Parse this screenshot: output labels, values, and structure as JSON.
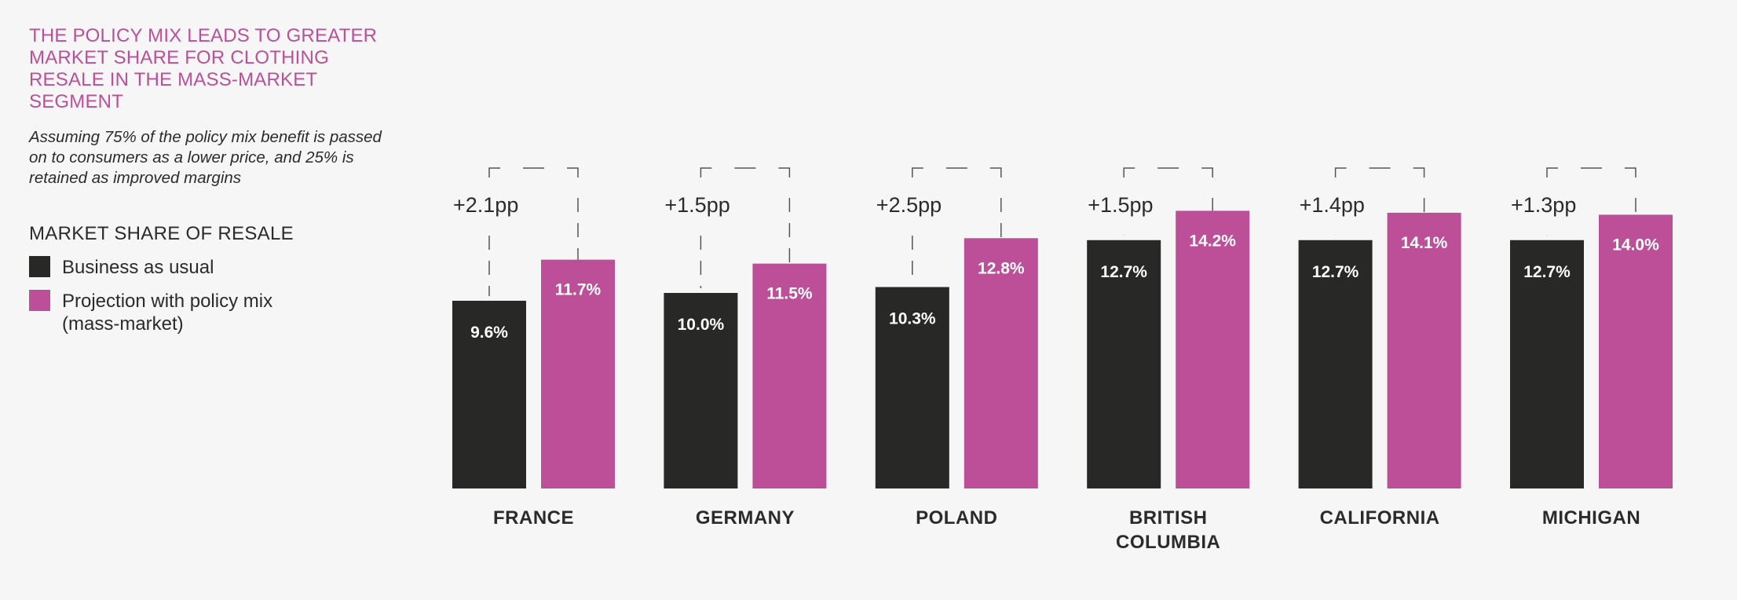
{
  "title": "THE POLICY MIX LEADS TO GREATER MARKET SHARE FOR CLOTHING RESALE IN THE MASS-MARKET SEGMENT",
  "subtitle": "Assuming 75% of the policy mix benefit is passed on to consumers as a lower price, and 25% is retained as improved margins",
  "legend": {
    "title": "MARKET SHARE OF RESALE",
    "items": [
      {
        "label": "Business as usual",
        "color": "#282826"
      },
      {
        "label": "Projection with policy mix\n(mass-market)",
        "color": "#bc4f98"
      }
    ]
  },
  "chart_data": {
    "type": "bar",
    "categories": [
      [
        "FRANCE"
      ],
      [
        "GERMANY"
      ],
      [
        "POLAND"
      ],
      [
        "BRITISH",
        "COLUMBIA"
      ],
      [
        "CALIFORNIA"
      ],
      [
        "MICHIGAN"
      ]
    ],
    "series": [
      {
        "name": "Business as usual",
        "color": "#282826",
        "values": [
          9.6,
          10.0,
          10.3,
          12.7,
          12.7,
          12.7
        ],
        "labels": [
          "9.6%",
          "10.0%",
          "10.3%",
          "12.7%",
          "12.7%",
          "12.7%"
        ]
      },
      {
        "name": "Projection with policy mix (mass-market)",
        "color": "#bc4f98",
        "values": [
          11.7,
          11.5,
          12.8,
          14.2,
          14.1,
          14.0
        ],
        "labels": [
          "11.7%",
          "11.5%",
          "12.8%",
          "14.2%",
          "14.1%",
          "14.0%"
        ]
      }
    ],
    "deltas": [
      "+2.1pp",
      "+1.5pp",
      "+2.5pp",
      "+1.5pp",
      "+1.4pp",
      "+1.3pp"
    ],
    "ylim": [
      0,
      16
    ],
    "grid": false,
    "legend_position": "left"
  }
}
